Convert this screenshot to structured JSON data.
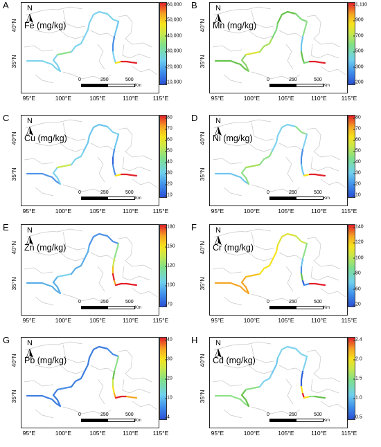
{
  "map": {
    "x_labels": [
      "95°E",
      "100°E",
      "105°E",
      "110°E",
      "115°E"
    ],
    "y_labels": [
      "40°N",
      "35°N"
    ],
    "north_label": "N",
    "scale": {
      "ticks": [
        "0",
        "250",
        "500"
      ],
      "unit": "Km"
    }
  },
  "panels": [
    {
      "letter": "A",
      "element": "Fe (mg/kg)",
      "ticks": [
        "60,000",
        "50,000",
        "40,000",
        "30,000",
        "20,000",
        "10,000"
      ],
      "segment_colors": [
        "#7fd3ee",
        "#7fd3ee",
        "#7fd3ee",
        "#8fe08a",
        "#7fd3ee",
        "#7fd3ee",
        "#7fd3ee",
        "#7fd3ee",
        "#6fc6ee",
        "#4a8fe8",
        "#4a8fe8",
        "#7fd3ee",
        "#7fd3ee",
        "#f6e21b",
        "#e2202a",
        "#e2202a"
      ]
    },
    {
      "letter": "B",
      "element": "Mn (mg/kg)",
      "ticks": [
        "1,110",
        "900",
        "700",
        "500",
        "300",
        "200"
      ],
      "segment_colors": [
        "#66c24a",
        "#66c24a",
        "#8fd36e",
        "#dfe23a",
        "#a8e05a",
        "#7ed67a",
        "#66c24a",
        "#7ed67a",
        "#8fe08a",
        "#6fc6ee",
        "#6fc6ee",
        "#66c24a",
        "#66c24a",
        "#7ed67a",
        "#e2202a",
        "#e2202a"
      ]
    },
    {
      "letter": "C",
      "element": "Cu (mg/kg)",
      "ticks": [
        "80",
        "70",
        "60",
        "50",
        "40",
        "30",
        "20",
        "10"
      ],
      "segment_colors": [
        "#4f93e8",
        "#4f93e8",
        "#7fd3ee",
        "#c8e84c",
        "#7fd3ee",
        "#6fc6ee",
        "#6fc6ee",
        "#7fd3ee",
        "#6fc6ee",
        "#4a8fe8",
        "#2f5fd8",
        "#4f93e8",
        "#4f93e8",
        "#f6e21b",
        "#e2202a",
        "#e2202a"
      ]
    },
    {
      "letter": "D",
      "element": "Ni (mg/kg)",
      "ticks": [
        "80",
        "70",
        "60",
        "50",
        "40",
        "30",
        "20",
        "10"
      ],
      "segment_colors": [
        "#6fc6ee",
        "#6fc6ee",
        "#8fe08a",
        "#a8e05a",
        "#8fe08a",
        "#7fd3ee",
        "#7fd3ee",
        "#8fe08a",
        "#7fd3ee",
        "#4a8fe8",
        "#4a8fe8",
        "#6fc6ee",
        "#6fc6ee",
        "#f6e21b",
        "#e2202a",
        "#e2202a"
      ]
    },
    {
      "letter": "E",
      "element": "Zn (mg/kg)",
      "ticks": [
        "180",
        "150",
        "120",
        "100",
        "70"
      ],
      "segment_colors": [
        "#5aaee8",
        "#5aaee8",
        "#5aaee8",
        "#7fd3ee",
        "#5aaee8",
        "#5aaee8",
        "#4f93e8",
        "#4f93e8",
        "#8fe08a",
        "#c8e84c",
        "#f6c21b",
        "#e2202a",
        "#f5a623",
        "#e2202a",
        "#e2202a",
        "#e2202a"
      ]
    },
    {
      "letter": "F",
      "element": "Cr (mg/kg)",
      "ticks": [
        "140",
        "120",
        "100",
        "80",
        "60",
        "20"
      ],
      "segment_colors": [
        "#f5a623",
        "#f5a623",
        "#f5a623",
        "#f5c023",
        "#f6e21b",
        "#f6e21b",
        "#dfe23a",
        "#c8e84c",
        "#8fe08a",
        "#6fc6ee",
        "#4a8fe8",
        "#66c24a",
        "#2f5fd8",
        "#4a8fe8",
        "#e2202a",
        "#e2202a"
      ]
    },
    {
      "letter": "G",
      "element": "Pb (mg/kg)",
      "ticks": [
        "40",
        "30",
        "20",
        "10",
        "4"
      ],
      "segment_colors": [
        "#3f7fe0",
        "#3f7fe0",
        "#3f7fe0",
        "#4a8fe8",
        "#3f7fe0",
        "#3f7fe0",
        "#3f7fe0",
        "#4a8fe8",
        "#8fe08a",
        "#66c24a",
        "#c8e84c",
        "#f6e21b",
        "#f5a623",
        "#e2202a",
        "#e2202a",
        "#f5a623"
      ]
    },
    {
      "letter": "H",
      "element": "Cd (mg/kg)",
      "ticks": [
        "2.4",
        "2.0",
        "1.5",
        "1.0",
        "0.5"
      ],
      "segment_colors": [
        "#8fe08a",
        "#8fe08a",
        "#66c24a",
        "#8fe08a",
        "#7fd3ee",
        "#6fc6ee",
        "#7fd3ee",
        "#7fd3ee",
        "#7fd3ee",
        "#2f5fd8",
        "#2f5fd8",
        "#f6e21b",
        "#e2202a",
        "#f6e21b",
        "#8fe08a",
        "#66c24a"
      ]
    }
  ]
}
